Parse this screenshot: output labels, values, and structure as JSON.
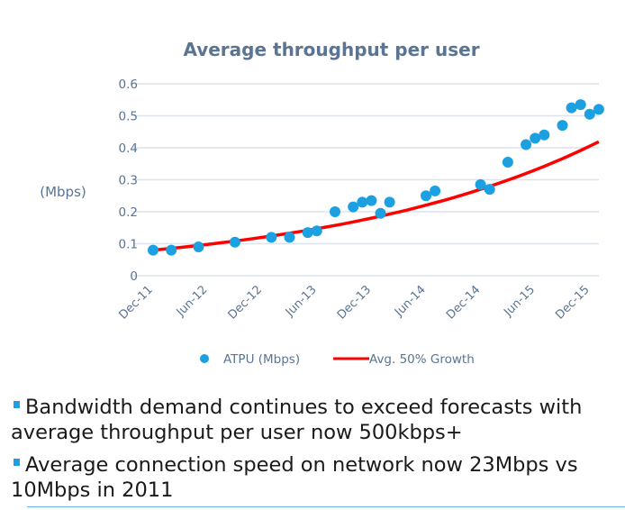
{
  "chart_data": {
    "type": "scatter",
    "title": "Average throughput per user",
    "ylabel": "(Mbps)",
    "xlabel": "",
    "ylim": [
      0,
      0.6
    ],
    "yticks": [
      "0",
      "0.1",
      "0.2",
      "0.3",
      "0.4",
      "0.5",
      "0.6"
    ],
    "xticks": [
      "Dec-11",
      "Jun-12",
      "Dec-12",
      "Jun-13",
      "Dec-13",
      "Jun-14",
      "Dec-14",
      "Jun-15",
      "Dec-15"
    ],
    "xlim": [
      "2011-12",
      "2016-01"
    ],
    "grid": "horizontal",
    "legend_position": "bottom",
    "series": [
      {
        "name": "ATPU (Mbps)",
        "type": "scatter",
        "color": "#1BA1E2",
        "points": [
          [
            "2011-12",
            0.08
          ],
          [
            "2012-02",
            0.08
          ],
          [
            "2012-05",
            0.09
          ],
          [
            "2012-09",
            0.105
          ],
          [
            "2013-01",
            0.12
          ],
          [
            "2013-03",
            0.12
          ],
          [
            "2013-05",
            0.135
          ],
          [
            "2013-06",
            0.14
          ],
          [
            "2013-08",
            0.2
          ],
          [
            "2013-10",
            0.215
          ],
          [
            "2013-11",
            0.23
          ],
          [
            "2013-12",
            0.235
          ],
          [
            "2014-01",
            0.195
          ],
          [
            "2014-02",
            0.23
          ],
          [
            "2014-06",
            0.25
          ],
          [
            "2014-07",
            0.265
          ],
          [
            "2014-12",
            0.285
          ],
          [
            "2015-01",
            0.27
          ],
          [
            "2015-03",
            0.355
          ],
          [
            "2015-05",
            0.41
          ],
          [
            "2015-06",
            0.43
          ],
          [
            "2015-07",
            0.44
          ],
          [
            "2015-09",
            0.47
          ],
          [
            "2015-10",
            0.525
          ],
          [
            "2015-11",
            0.535
          ],
          [
            "2015-12",
            0.505
          ],
          [
            "2016-01",
            0.52
          ]
        ]
      },
      {
        "name": "Avg. 50% Growth",
        "type": "line",
        "color": "#FF0000",
        "points": [
          [
            "2011-12",
            0.08
          ],
          [
            "2012-06",
            0.098
          ],
          [
            "2012-12",
            0.12
          ],
          [
            "2013-06",
            0.147
          ],
          [
            "2013-12",
            0.18
          ],
          [
            "2014-06",
            0.22
          ],
          [
            "2014-12",
            0.27
          ],
          [
            "2015-06",
            0.331
          ],
          [
            "2015-12",
            0.405
          ],
          [
            "2016-01",
            0.412
          ]
        ]
      }
    ]
  },
  "bullets": [
    "Bandwidth demand continues to exceed forecasts with average throughput per user now 500kbps+",
    "Average connection speed on network now 23Mbps vs 10Mbps in 2011"
  ],
  "colors": {
    "title": "#5A7494",
    "axis_text": "#5A7494",
    "grid": "#DCE3EC",
    "bullet": "#1BA1E2"
  }
}
